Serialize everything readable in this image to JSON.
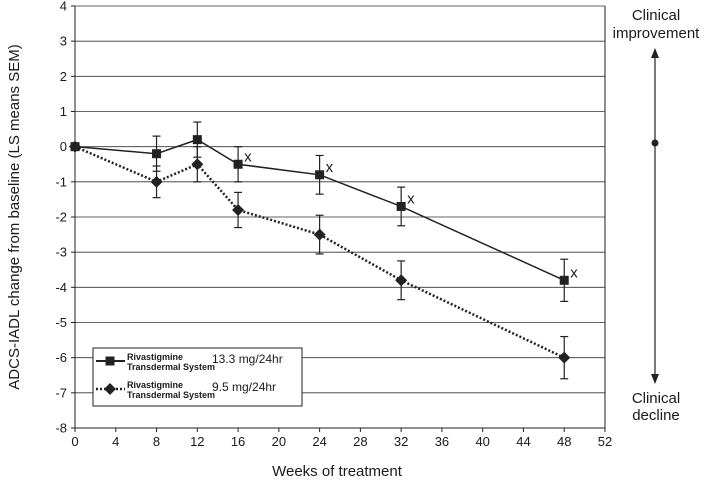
{
  "chart_data": {
    "type": "line",
    "xlabel": "Weeks of treatment",
    "ylabel": "ADCS-IADL change from baseline (LS means SEM)",
    "xlim": [
      0,
      52
    ],
    "ylim": [
      -8,
      4
    ],
    "x_ticks": [
      "0",
      "4",
      "8",
      "12",
      "16",
      "20",
      "24",
      "28",
      "32",
      "36",
      "40",
      "44",
      "48",
      "52"
    ],
    "y_ticks": [
      "4",
      "3",
      "2",
      "1",
      "0",
      "-1",
      "-2",
      "-3",
      "-4",
      "-5",
      "-6",
      "-7",
      "-8"
    ],
    "grid": "horizontal",
    "legend_position": "bottom-left",
    "series": [
      {
        "legend_line1": "Rivastigmine",
        "legend_line2": "Transdermal System",
        "dose": "13.3 mg/24hr",
        "marker": "square",
        "line_style": "solid",
        "color": "#222222",
        "x": [
          0,
          8,
          12,
          16,
          24,
          32,
          48
        ],
        "y": [
          0,
          -0.2,
          0.2,
          -0.5,
          -0.8,
          -1.7,
          -3.8
        ],
        "err": [
          0,
          0.5,
          0.5,
          0.5,
          0.55,
          0.55,
          0.6
        ]
      },
      {
        "legend_line1": "Rivastigmine",
        "legend_line2": "Transdermal System",
        "dose": "9.5 mg/24hr",
        "marker": "diamond",
        "line_style": "dotted",
        "color": "#222222",
        "x": [
          0,
          8,
          12,
          16,
          24,
          32,
          48
        ],
        "y": [
          0,
          -1.0,
          -0.5,
          -1.8,
          -2.5,
          -3.8,
          -6.0
        ],
        "err": [
          0,
          0.45,
          0.5,
          0.5,
          0.55,
          0.55,
          0.6
        ]
      }
    ],
    "annotations": [
      {
        "text": "x",
        "x": 16,
        "y": -0.5
      },
      {
        "text": "x",
        "x": 24,
        "y": -0.8
      },
      {
        "text": "x",
        "x": 32,
        "y": -1.7
      },
      {
        "text": "x",
        "x": 48,
        "y": -3.8
      }
    ]
  },
  "side_arrow": {
    "top_line1": "Clinical",
    "top_line2": "improvement",
    "bottom_line1": "Clinical",
    "bottom_line2": "decline"
  }
}
